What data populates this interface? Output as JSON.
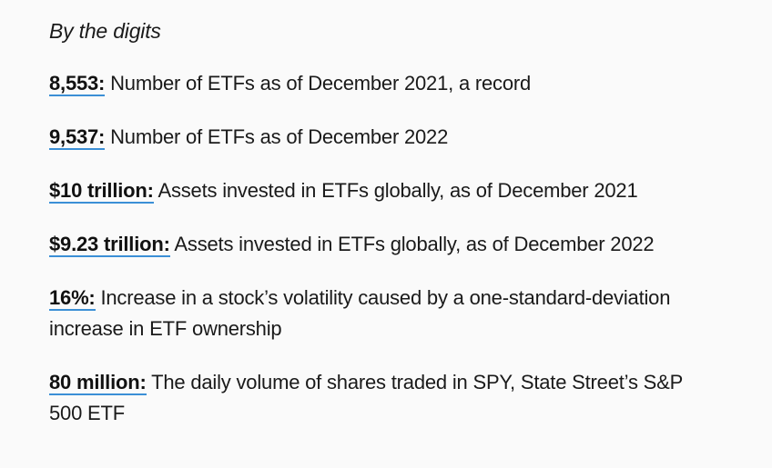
{
  "heading": "By the digits",
  "accent_color": "#3b8fd6",
  "facts": [
    {
      "stat": "8,553:",
      "text": " Number of ETFs as of December 2021, a record"
    },
    {
      "stat": "9,537:",
      "text": " Number of ETFs as of December 2022"
    },
    {
      "stat": "$10 trillion:",
      "text": " Assets invested in ETFs globally, as of December 2021"
    },
    {
      "stat": "$9.23 trillion:",
      "text": " Assets invested in ETFs globally, as of December 2022"
    },
    {
      "stat": "16%:",
      "text": " Increase in a stock’s volatility caused by a one-standard-deviation increase in ETF ownership"
    },
    {
      "stat": "80 million:",
      "text": " The daily volume of shares traded in SPY, State Street’s S&P 500 ETF"
    }
  ]
}
